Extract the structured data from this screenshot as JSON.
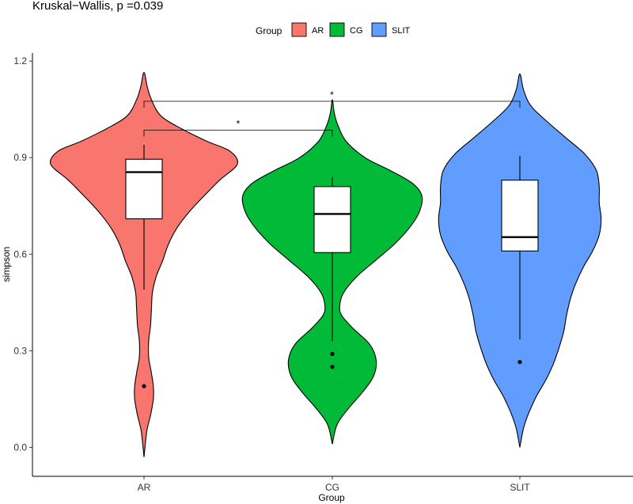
{
  "chart_data": {
    "type": "violin",
    "subtitle": "Kruskal−Wallis, p =0.039",
    "xlabel": "Group",
    "ylabel": "simpson",
    "ylim": [
      -0.09,
      1.225
    ],
    "y_ticks": [
      0.0,
      0.3,
      0.6,
      0.9,
      1.2
    ],
    "y_tick_labels": [
      "0.0",
      "0.3",
      "0.6",
      "0.9",
      "1.2"
    ],
    "legend": {
      "title": "Group",
      "position": "top"
    },
    "groups": [
      {
        "name": "AR",
        "color": "#F8766D",
        "box": {
          "q1": 0.71,
          "median": 0.855,
          "q3": 0.895,
          "whisker_low": 0.49,
          "whisker_high": 0.94
        },
        "outliers": [
          0.19
        ],
        "violin": {
          "y": [
            -0.03,
            0.05,
            0.1,
            0.15,
            0.19,
            0.23,
            0.28,
            0.33,
            0.38,
            0.43,
            0.48,
            0.53,
            0.58,
            0.63,
            0.68,
            0.73,
            0.78,
            0.83,
            0.88,
            0.92,
            0.95,
            0.99,
            1.03,
            1.08,
            1.12,
            1.165
          ],
          "width": [
            0.0,
            0.03,
            0.07,
            0.1,
            0.1,
            0.08,
            0.05,
            0.05,
            0.07,
            0.08,
            0.09,
            0.13,
            0.2,
            0.26,
            0.35,
            0.48,
            0.64,
            0.81,
            1.0,
            0.92,
            0.68,
            0.4,
            0.18,
            0.08,
            0.035,
            0.0
          ]
        }
      },
      {
        "name": "CG",
        "color": "#00BA38",
        "box": {
          "q1": 0.605,
          "median": 0.725,
          "q3": 0.81,
          "whisker_low": 0.33,
          "whisker_high": 0.84
        },
        "outliers": [
          0.29,
          0.25
        ],
        "violin": {
          "y": [
            0.01,
            0.07,
            0.12,
            0.17,
            0.22,
            0.27,
            0.32,
            0.37,
            0.41,
            0.44,
            0.48,
            0.53,
            0.58,
            0.63,
            0.68,
            0.73,
            0.78,
            0.82,
            0.86,
            0.9,
            0.95,
            1.0,
            1.04,
            1.08
          ],
          "width": [
            0.0,
            0.05,
            0.17,
            0.32,
            0.44,
            0.47,
            0.4,
            0.22,
            0.1,
            0.08,
            0.12,
            0.26,
            0.46,
            0.66,
            0.82,
            0.93,
            0.96,
            0.86,
            0.62,
            0.35,
            0.15,
            0.06,
            0.02,
            0.0
          ]
        }
      },
      {
        "name": "SLIT",
        "color": "#619CFF",
        "box": {
          "q1": 0.61,
          "median": 0.653,
          "q3": 0.83,
          "whisker_low": 0.335,
          "whisker_high": 0.905
        },
        "outliers": [
          0.265
        ],
        "violin": {
          "y": [
            0.0,
            0.06,
            0.11,
            0.16,
            0.21,
            0.26,
            0.31,
            0.36,
            0.41,
            0.46,
            0.51,
            0.56,
            0.61,
            0.66,
            0.71,
            0.76,
            0.81,
            0.86,
            0.91,
            0.96,
            1.01,
            1.06,
            1.11,
            1.16
          ],
          "width": [
            0.0,
            0.04,
            0.1,
            0.18,
            0.28,
            0.36,
            0.42,
            0.47,
            0.5,
            0.54,
            0.6,
            0.68,
            0.78,
            0.85,
            0.87,
            0.85,
            0.85,
            0.82,
            0.7,
            0.5,
            0.3,
            0.12,
            0.04,
            0.0
          ]
        }
      }
    ],
    "comparisons": [
      {
        "from": "AR",
        "to": "CG",
        "y": 0.985,
        "label": "*"
      },
      {
        "from": "AR",
        "to": "SLIT",
        "y": 1.075,
        "label": "*"
      }
    ]
  }
}
